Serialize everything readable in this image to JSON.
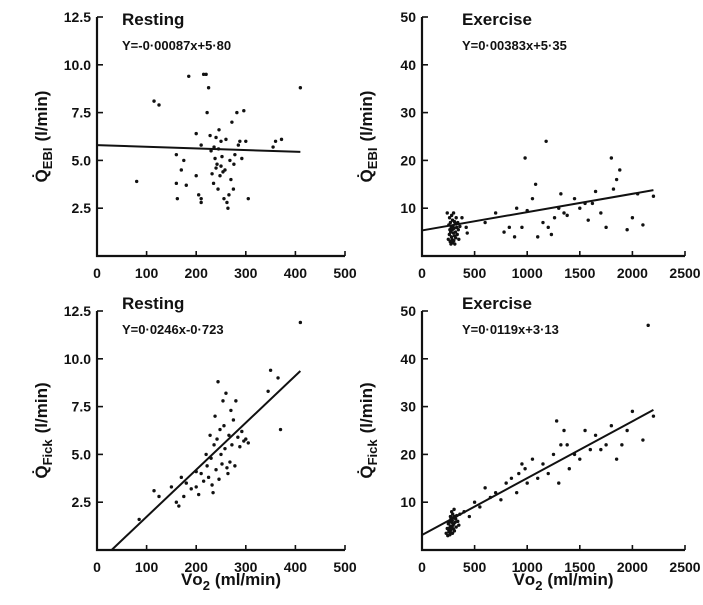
{
  "chart_data": [
    {
      "type": "scatter",
      "title": "Resting",
      "equation": "Y=-0·00087x+5·80",
      "ylabel": "Q̇EBI (l/min)",
      "ylabel_main": "Q",
      "ylabel_sub": "EBI",
      "ylabel_unit": "(l/min)",
      "xlabel": "",
      "xlim": [
        0,
        500
      ],
      "ylim": [
        0,
        12.5
      ],
      "xticks": [
        "0",
        "100",
        "200",
        "300",
        "400",
        "500"
      ],
      "yticks": [
        "2.5",
        "5.0",
        "7.5",
        "10.0",
        "12.5"
      ],
      "fit": {
        "slope": -0.00087,
        "intercept": 5.8,
        "x_range": [
          0,
          410
        ]
      },
      "points": [
        [
          80,
          3.9
        ],
        [
          115,
          8.1
        ],
        [
          125,
          7.9
        ],
        [
          160,
          5.3
        ],
        [
          160,
          3.8
        ],
        [
          162,
          3.0
        ],
        [
          170,
          4.5
        ],
        [
          175,
          5.0
        ],
        [
          180,
          3.7
        ],
        [
          185,
          9.4
        ],
        [
          200,
          6.4
        ],
        [
          200,
          4.2
        ],
        [
          205,
          3.2
        ],
        [
          210,
          5.8
        ],
        [
          210,
          3.0
        ],
        [
          210,
          2.8
        ],
        [
          215,
          9.5
        ],
        [
          220,
          9.5
        ],
        [
          222,
          7.5
        ],
        [
          225,
          8.8
        ],
        [
          228,
          6.3
        ],
        [
          230,
          5.5
        ],
        [
          232,
          4.3
        ],
        [
          235,
          3.8
        ],
        [
          236,
          5.7
        ],
        [
          238,
          5.1
        ],
        [
          240,
          6.2
        ],
        [
          240,
          4.6
        ],
        [
          242,
          4.8
        ],
        [
          244,
          3.5
        ],
        [
          245,
          5.6
        ],
        [
          246,
          6.6
        ],
        [
          248,
          4.2
        ],
        [
          250,
          4.7
        ],
        [
          250,
          6.0
        ],
        [
          252,
          5.2
        ],
        [
          254,
          4.4
        ],
        [
          256,
          3.0
        ],
        [
          258,
          4.5
        ],
        [
          260,
          6.1
        ],
        [
          262,
          2.8
        ],
        [
          264,
          2.5
        ],
        [
          266,
          3.2
        ],
        [
          268,
          5.0
        ],
        [
          270,
          4.0
        ],
        [
          272,
          7.0
        ],
        [
          275,
          3.5
        ],
        [
          276,
          4.8
        ],
        [
          278,
          5.3
        ],
        [
          282,
          7.5
        ],
        [
          285,
          5.8
        ],
        [
          288,
          6.0
        ],
        [
          292,
          5.1
        ],
        [
          296,
          7.6
        ],
        [
          300,
          6.0
        ],
        [
          305,
          3.0
        ],
        [
          355,
          5.7
        ],
        [
          360,
          6.0
        ],
        [
          372,
          6.1
        ],
        [
          410,
          8.8
        ]
      ]
    },
    {
      "type": "scatter",
      "title": "Exercise",
      "equation": "Y=0·00383x+5·35",
      "ylabel": "Q̇EBI (l/min)",
      "ylabel_main": "Q",
      "ylabel_sub": "EBI",
      "ylabel_unit": "(l/min)",
      "xlabel": "",
      "xlim": [
        0,
        2500
      ],
      "ylim": [
        0,
        50
      ],
      "xticks": [
        "0",
        "500",
        "1000",
        "1500",
        "2000",
        "2500"
      ],
      "yticks": [
        "10",
        "20",
        "30",
        "40",
        "50"
      ],
      "fit": {
        "slope": 0.00383,
        "intercept": 5.35,
        "x_range": [
          0,
          2200
        ]
      },
      "points": [
        [
          240,
          9
        ],
        [
          250,
          3.5
        ],
        [
          255,
          6.5
        ],
        [
          260,
          4.5
        ],
        [
          262,
          8
        ],
        [
          265,
          5.5
        ],
        [
          268,
          3
        ],
        [
          270,
          7
        ],
        [
          272,
          5
        ],
        [
          275,
          2.5
        ],
        [
          278,
          6
        ],
        [
          280,
          4
        ],
        [
          282,
          8.5
        ],
        [
          285,
          3.5
        ],
        [
          288,
          5.5
        ],
        [
          290,
          7.5
        ],
        [
          292,
          2.8
        ],
        [
          295,
          6.2
        ],
        [
          298,
          4.8
        ],
        [
          300,
          9
        ],
        [
          302,
          3.2
        ],
        [
          305,
          5.8
        ],
        [
          308,
          7.2
        ],
        [
          310,
          4.2
        ],
        [
          312,
          2.5
        ],
        [
          315,
          6.8
        ],
        [
          318,
          5
        ],
        [
          320,
          3.8
        ],
        [
          325,
          8
        ],
        [
          330,
          6
        ],
        [
          335,
          4.5
        ],
        [
          340,
          7
        ],
        [
          345,
          5.5
        ],
        [
          350,
          3.5
        ],
        [
          360,
          6.2
        ],
        [
          380,
          8
        ],
        [
          420,
          6
        ],
        [
          430,
          4.8
        ],
        [
          600,
          7
        ],
        [
          700,
          9
        ],
        [
          780,
          5
        ],
        [
          830,
          6
        ],
        [
          880,
          4
        ],
        [
          900,
          10
        ],
        [
          950,
          6
        ],
        [
          980,
          20.5
        ],
        [
          1000,
          9.5
        ],
        [
          1050,
          12
        ],
        [
          1080,
          15
        ],
        [
          1100,
          4
        ],
        [
          1150,
          7
        ],
        [
          1180,
          24
        ],
        [
          1200,
          6
        ],
        [
          1230,
          4.5
        ],
        [
          1260,
          8
        ],
        [
          1300,
          10
        ],
        [
          1320,
          13
        ],
        [
          1350,
          9
        ],
        [
          1380,
          8.5
        ],
        [
          1450,
          12
        ],
        [
          1500,
          10
        ],
        [
          1550,
          11
        ],
        [
          1580,
          7.5
        ],
        [
          1620,
          11
        ],
        [
          1650,
          13.5
        ],
        [
          1700,
          9
        ],
        [
          1750,
          6
        ],
        [
          1800,
          20.5
        ],
        [
          1820,
          14
        ],
        [
          1850,
          16
        ],
        [
          1880,
          18
        ],
        [
          1950,
          5.5
        ],
        [
          2000,
          8
        ],
        [
          2050,
          13
        ],
        [
          2100,
          6.5
        ],
        [
          2200,
          12.5
        ]
      ]
    },
    {
      "type": "scatter",
      "title": "Resting",
      "equation": "Y=0·0246x-0·723",
      "ylabel": "Q̇Fick (l/min)",
      "ylabel_main": "Q",
      "ylabel_sub": "Fick",
      "ylabel_unit": "(l/min)",
      "xlabel": "V̇o2 (ml/min)",
      "xlabel_main": "Vo",
      "xlabel_sub": "2",
      "xlabel_unit": "(ml/min)",
      "xlim": [
        0,
        500
      ],
      "ylim": [
        0,
        12.5
      ],
      "xticks": [
        "0",
        "100",
        "200",
        "300",
        "400",
        "500"
      ],
      "yticks": [
        "2.5",
        "5.0",
        "7.5",
        "10.0",
        "12.5"
      ],
      "fit": {
        "slope": 0.0246,
        "intercept": -0.723,
        "x_range": [
          30,
          410
        ]
      },
      "points": [
        [
          85,
          1.6
        ],
        [
          115,
          3.1
        ],
        [
          125,
          2.8
        ],
        [
          150,
          3.3
        ],
        [
          160,
          2.5
        ],
        [
          165,
          2.3
        ],
        [
          170,
          3.8
        ],
        [
          175,
          2.8
        ],
        [
          180,
          3.5
        ],
        [
          190,
          3.2
        ],
        [
          200,
          4.1
        ],
        [
          200,
          3.3
        ],
        [
          205,
          2.9
        ],
        [
          210,
          4.0
        ],
        [
          215,
          3.6
        ],
        [
          220,
          5.0
        ],
        [
          222,
          4.4
        ],
        [
          225,
          3.8
        ],
        [
          228,
          6.0
        ],
        [
          230,
          4.8
        ],
        [
          232,
          3.4
        ],
        [
          234,
          3.0
        ],
        [
          236,
          5.5
        ],
        [
          238,
          7.0
        ],
        [
          240,
          4.2
        ],
        [
          242,
          5.8
        ],
        [
          244,
          8.8
        ],
        [
          246,
          3.7
        ],
        [
          248,
          6.3
        ],
        [
          250,
          5.0
        ],
        [
          252,
          4.5
        ],
        [
          254,
          7.8
        ],
        [
          256,
          6.5
        ],
        [
          258,
          5.3
        ],
        [
          260,
          8.2
        ],
        [
          262,
          4.3
        ],
        [
          264,
          4.0
        ],
        [
          266,
          6.0
        ],
        [
          268,
          4.6
        ],
        [
          270,
          7.3
        ],
        [
          272,
          5.5
        ],
        [
          275,
          6.8
        ],
        [
          278,
          4.4
        ],
        [
          280,
          7.8
        ],
        [
          284,
          5.9
        ],
        [
          288,
          5.4
        ],
        [
          292,
          6.2
        ],
        [
          296,
          5.7
        ],
        [
          300,
          5.8
        ],
        [
          305,
          5.6
        ],
        [
          345,
          8.3
        ],
        [
          350,
          9.4
        ],
        [
          365,
          9.0
        ],
        [
          370,
          6.3
        ],
        [
          410,
          11.9
        ]
      ]
    },
    {
      "type": "scatter",
      "title": "Exercise",
      "equation": "Y=0·0119x+3·13",
      "ylabel": "Q̇Fick (l/min)",
      "ylabel_main": "Q",
      "ylabel_sub": "Fick",
      "ylabel_unit": "(l/min)",
      "xlabel": "V̇o2 (ml/min)",
      "xlabel_main": "Vo",
      "xlabel_sub": "2",
      "xlabel_unit": "(ml/min)",
      "xlim": [
        0,
        2500
      ],
      "ylim": [
        0,
        50
      ],
      "xticks": [
        "0",
        "500",
        "1000",
        "1500",
        "2000",
        "2500"
      ],
      "yticks": [
        "10",
        "20",
        "30",
        "40",
        "50"
      ],
      "fit": {
        "slope": 0.0119,
        "intercept": 3.13,
        "x_range": [
          0,
          2200
        ]
      },
      "points": [
        [
          230,
          3.5
        ],
        [
          240,
          4.5
        ],
        [
          245,
          3
        ],
        [
          250,
          5.5
        ],
        [
          255,
          4
        ],
        [
          258,
          3.8
        ],
        [
          260,
          6
        ],
        [
          262,
          4.5
        ],
        [
          265,
          3.2
        ],
        [
          268,
          5
        ],
        [
          270,
          7
        ],
        [
          272,
          4.2
        ],
        [
          275,
          6.5
        ],
        [
          278,
          3.6
        ],
        [
          280,
          5.8
        ],
        [
          282,
          8
        ],
        [
          285,
          4.8
        ],
        [
          288,
          6.2
        ],
        [
          290,
          3.5
        ],
        [
          292,
          7.5
        ],
        [
          295,
          5.2
        ],
        [
          298,
          4.4
        ],
        [
          300,
          6.8
        ],
        [
          302,
          5.5
        ],
        [
          305,
          8.5
        ],
        [
          308,
          4
        ],
        [
          310,
          7
        ],
        [
          315,
          5.8
        ],
        [
          320,
          6.5
        ],
        [
          325,
          4.8
        ],
        [
          330,
          7.2
        ],
        [
          340,
          6
        ],
        [
          350,
          5.2
        ],
        [
          360,
          7.5
        ],
        [
          400,
          8
        ],
        [
          450,
          7
        ],
        [
          500,
          10
        ],
        [
          550,
          9
        ],
        [
          600,
          13
        ],
        [
          650,
          11
        ],
        [
          700,
          12
        ],
        [
          750,
          10.5
        ],
        [
          800,
          14
        ],
        [
          850,
          15
        ],
        [
          900,
          12
        ],
        [
          920,
          16
        ],
        [
          950,
          18
        ],
        [
          980,
          17
        ],
        [
          1000,
          14
        ],
        [
          1050,
          19
        ],
        [
          1100,
          15
        ],
        [
          1150,
          18
        ],
        [
          1200,
          16
        ],
        [
          1250,
          20
        ],
        [
          1280,
          27
        ],
        [
          1300,
          14
        ],
        [
          1320,
          22
        ],
        [
          1350,
          25
        ],
        [
          1380,
          22
        ],
        [
          1400,
          17
        ],
        [
          1450,
          20
        ],
        [
          1500,
          19
        ],
        [
          1550,
          25
        ],
        [
          1600,
          21
        ],
        [
          1650,
          24
        ],
        [
          1700,
          21
        ],
        [
          1750,
          22
        ],
        [
          1800,
          26
        ],
        [
          1850,
          19
        ],
        [
          1900,
          22
        ],
        [
          1950,
          25
        ],
        [
          2000,
          29
        ],
        [
          2100,
          23
        ],
        [
          2150,
          47
        ],
        [
          2200,
          28
        ]
      ]
    }
  ]
}
